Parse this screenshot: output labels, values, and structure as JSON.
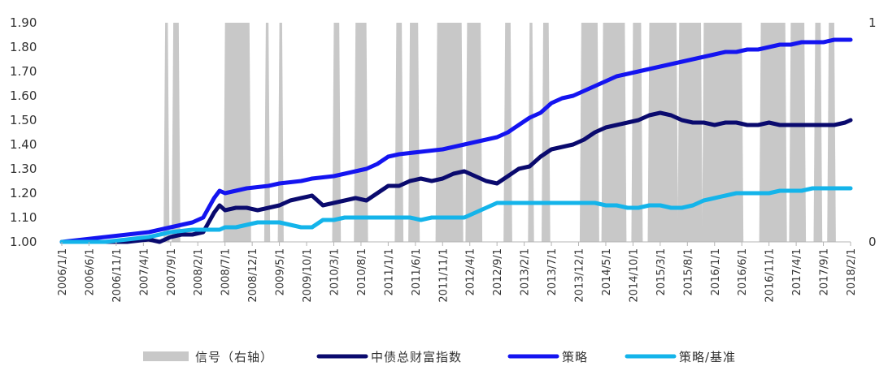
{
  "chart_data": {
    "type": "line",
    "title": "",
    "xlabel": "",
    "ylabel": "",
    "ylim": [
      1.0,
      1.9
    ],
    "y_ticks": [
      "1.00",
      "1.10",
      "1.20",
      "1.30",
      "1.40",
      "1.50",
      "1.60",
      "1.70",
      "1.80",
      "1.90"
    ],
    "y2lim": [
      0,
      1
    ],
    "y2_ticks": [
      "0",
      "1"
    ],
    "x_ticks": [
      "2006/1/1",
      "2006/6/1",
      "2006/11/1",
      "2007/4/1",
      "2007/9/1",
      "2008/2/1",
      "2008/7/1",
      "2008/12/1",
      "2009/5/1",
      "2009/10/1",
      "2010/3/1",
      "2010/8/1",
      "2011/1/1",
      "2011/6/1",
      "2011/11/1",
      "2012/4/1",
      "2012/9/1",
      "2013/2/1",
      "2013/7/1",
      "2013/12/1",
      "2014/5/1",
      "2014/10/1",
      "2015/3/1",
      "2015/8/1",
      "2016/1/1",
      "2016/6/1",
      "2016/11/1",
      "2017/4/1",
      "2017/9/1",
      "2018/2/1"
    ],
    "x_range_months": [
      0,
      145
    ],
    "legend_position": "bottom",
    "signal_periods_months": [
      [
        19,
        19.5
      ],
      [
        20.5,
        21.5
      ],
      [
        30,
        34.5
      ],
      [
        37.5,
        38
      ],
      [
        40,
        40.5
      ],
      [
        50,
        51
      ],
      [
        54,
        56
      ],
      [
        61.5,
        62.5
      ],
      [
        64,
        65.5
      ],
      [
        69,
        73.5
      ],
      [
        74.5,
        77
      ],
      [
        81.5,
        82.5
      ],
      [
        86,
        86.5
      ],
      [
        88.5,
        89.5
      ],
      [
        95.5,
        98.5
      ],
      [
        99.5,
        103.5
      ],
      [
        105,
        106.5
      ],
      [
        108,
        113
      ],
      [
        113.5,
        117.5
      ],
      [
        118,
        125
      ],
      [
        128.5,
        133
      ],
      [
        134,
        136.5
      ],
      [
        138.5,
        139.5
      ],
      [
        141,
        142
      ]
    ],
    "series": [
      {
        "name": "信号（右轴）",
        "axis": "right",
        "color": "#c8c8c8",
        "style": "area"
      },
      {
        "name": "中债总财富指数",
        "axis": "left",
        "color": "#0a0a6e",
        "x": [
          0,
          4,
          8,
          12,
          16,
          18,
          20,
          22,
          24,
          26,
          28,
          29,
          30,
          32,
          34,
          36,
          38,
          40,
          42,
          44,
          46,
          48,
          50,
          52,
          54,
          56,
          58,
          60,
          62,
          64,
          66,
          68,
          70,
          72,
          74,
          76,
          78,
          80,
          82,
          84,
          86,
          88,
          90,
          92,
          94,
          96,
          98,
          100,
          102,
          104,
          106,
          108,
          110,
          112,
          114,
          116,
          118,
          120,
          122,
          124,
          126,
          128,
          130,
          132,
          134,
          136,
          138,
          140,
          142,
          144,
          145
        ],
        "values": [
          1.0,
          1.0,
          1.0,
          1.0,
          1.01,
          1.0,
          1.02,
          1.03,
          1.03,
          1.04,
          1.12,
          1.15,
          1.13,
          1.14,
          1.14,
          1.13,
          1.14,
          1.15,
          1.17,
          1.18,
          1.19,
          1.15,
          1.16,
          1.17,
          1.18,
          1.17,
          1.2,
          1.23,
          1.23,
          1.25,
          1.26,
          1.25,
          1.26,
          1.28,
          1.29,
          1.27,
          1.25,
          1.24,
          1.27,
          1.3,
          1.31,
          1.35,
          1.38,
          1.39,
          1.4,
          1.42,
          1.45,
          1.47,
          1.48,
          1.49,
          1.5,
          1.52,
          1.53,
          1.52,
          1.5,
          1.49,
          1.49,
          1.48,
          1.49,
          1.49,
          1.48,
          1.48,
          1.49,
          1.48,
          1.48,
          1.48,
          1.48,
          1.48,
          1.48,
          1.49,
          1.5
        ]
      },
      {
        "name": "策略",
        "axis": "left",
        "color": "#1414f0",
        "x": [
          0,
          4,
          8,
          12,
          16,
          18,
          20,
          22,
          24,
          26,
          28,
          29,
          30,
          32,
          34,
          36,
          38,
          40,
          42,
          44,
          46,
          48,
          50,
          52,
          54,
          56,
          58,
          60,
          62,
          64,
          66,
          68,
          70,
          72,
          74,
          76,
          78,
          80,
          82,
          84,
          86,
          88,
          90,
          92,
          94,
          96,
          98,
          100,
          102,
          104,
          106,
          108,
          110,
          112,
          114,
          116,
          118,
          120,
          122,
          124,
          126,
          128,
          130,
          132,
          134,
          136,
          138,
          140,
          142,
          144,
          145
        ],
        "values": [
          1.0,
          1.01,
          1.02,
          1.03,
          1.04,
          1.05,
          1.06,
          1.07,
          1.08,
          1.1,
          1.18,
          1.21,
          1.2,
          1.21,
          1.22,
          1.225,
          1.23,
          1.24,
          1.245,
          1.25,
          1.26,
          1.265,
          1.27,
          1.28,
          1.29,
          1.3,
          1.32,
          1.35,
          1.36,
          1.365,
          1.37,
          1.375,
          1.38,
          1.39,
          1.4,
          1.41,
          1.42,
          1.43,
          1.45,
          1.48,
          1.51,
          1.53,
          1.57,
          1.59,
          1.6,
          1.62,
          1.64,
          1.66,
          1.68,
          1.69,
          1.7,
          1.71,
          1.72,
          1.73,
          1.74,
          1.75,
          1.76,
          1.77,
          1.78,
          1.78,
          1.79,
          1.79,
          1.8,
          1.81,
          1.81,
          1.82,
          1.82,
          1.82,
          1.83,
          1.83,
          1.83
        ]
      },
      {
        "name": "策略/基准",
        "axis": "left",
        "color": "#14b4ea",
        "x": [
          0,
          4,
          8,
          12,
          16,
          18,
          20,
          22,
          24,
          26,
          28,
          29,
          30,
          32,
          34,
          36,
          38,
          40,
          42,
          44,
          46,
          48,
          50,
          52,
          54,
          56,
          58,
          60,
          62,
          64,
          66,
          68,
          70,
          72,
          74,
          76,
          78,
          80,
          82,
          84,
          86,
          88,
          90,
          92,
          94,
          96,
          98,
          100,
          102,
          104,
          106,
          108,
          110,
          112,
          114,
          116,
          118,
          120,
          122,
          124,
          126,
          128,
          130,
          132,
          134,
          136,
          138,
          140,
          142,
          144,
          145
        ],
        "values": [
          1.0,
          1.0,
          1.0,
          1.01,
          1.02,
          1.03,
          1.04,
          1.045,
          1.05,
          1.05,
          1.05,
          1.05,
          1.06,
          1.06,
          1.07,
          1.08,
          1.08,
          1.08,
          1.07,
          1.06,
          1.06,
          1.09,
          1.09,
          1.1,
          1.1,
          1.1,
          1.1,
          1.1,
          1.1,
          1.1,
          1.09,
          1.1,
          1.1,
          1.1,
          1.1,
          1.12,
          1.14,
          1.16,
          1.16,
          1.16,
          1.16,
          1.16,
          1.16,
          1.16,
          1.16,
          1.16,
          1.16,
          1.15,
          1.15,
          1.14,
          1.14,
          1.15,
          1.15,
          1.14,
          1.14,
          1.15,
          1.17,
          1.18,
          1.19,
          1.2,
          1.2,
          1.2,
          1.2,
          1.21,
          1.21,
          1.21,
          1.22,
          1.22,
          1.22,
          1.22,
          1.22
        ]
      }
    ]
  }
}
